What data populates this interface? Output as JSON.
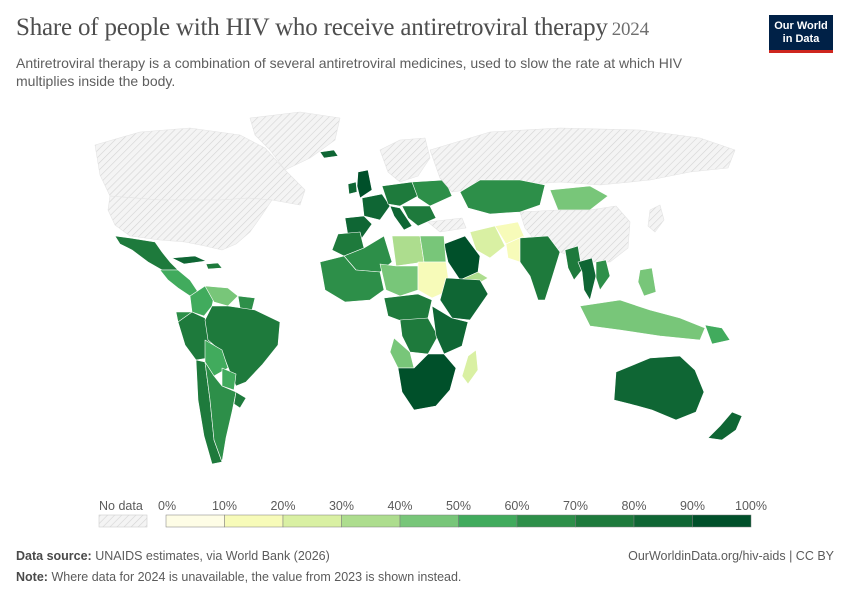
{
  "header": {
    "title": "Share of people with HIV who receive antiretroviral therapy",
    "year": "2024",
    "subtitle": "Antiretroviral therapy is a combination of several antiretroviral medicines, used to slow the rate at which HIV multiplies inside the body."
  },
  "logo": {
    "line1": "Our World",
    "line2": "in Data",
    "bg": "#002147",
    "accent": "#ce261e"
  },
  "legend": {
    "no_data_label": "No data",
    "ticks": [
      "0%",
      "10%",
      "20%",
      "30%",
      "40%",
      "50%",
      "60%",
      "70%",
      "80%",
      "90%",
      "100%"
    ],
    "colors": [
      "#fefde6",
      "#f7fbb9",
      "#d9f0a3",
      "#addd8e",
      "#78c679",
      "#41ab5d",
      "#2d8f49",
      "#1e7a3c",
      "#0f6634",
      "#00502a"
    ]
  },
  "map_regions": [
    {
      "name": "greenland",
      "value": null
    },
    {
      "name": "canada",
      "value": null
    },
    {
      "name": "usa",
      "value": null
    },
    {
      "name": "mexico",
      "value": 70
    },
    {
      "name": "guatemala",
      "value": 50
    },
    {
      "name": "cuba",
      "value": 80
    },
    {
      "name": "haiti",
      "value": 75
    },
    {
      "name": "colombia",
      "value": 55
    },
    {
      "name": "venezuela",
      "value": 45
    },
    {
      "name": "guyana",
      "value": 60
    },
    {
      "name": "ecuador",
      "value": 60
    },
    {
      "name": "peru",
      "value": 72
    },
    {
      "name": "brazil",
      "value": 70
    },
    {
      "name": "bolivia",
      "value": 58
    },
    {
      "name": "paraguay",
      "value": 52
    },
    {
      "name": "chile",
      "value": 74
    },
    {
      "name": "argentina",
      "value": 65
    },
    {
      "name": "uruguay",
      "value": 70
    },
    {
      "name": "iceland",
      "value": 82
    },
    {
      "name": "ireland",
      "value": 88
    },
    {
      "name": "uk",
      "value": 92
    },
    {
      "name": "france",
      "value": 85
    },
    {
      "name": "iberia",
      "value": 82
    },
    {
      "name": "central-europe",
      "value": 75
    },
    {
      "name": "italy",
      "value": 86
    },
    {
      "name": "scandinavia",
      "value": null
    },
    {
      "name": "eastern-europe",
      "value": 60
    },
    {
      "name": "balkans",
      "value": 70
    },
    {
      "name": "russia",
      "value": null
    },
    {
      "name": "kazakhstan",
      "value": 68
    },
    {
      "name": "mongolia",
      "value": 42
    },
    {
      "name": "china",
      "value": null
    },
    {
      "name": "japan",
      "value": null
    },
    {
      "name": "turkey",
      "value": null
    },
    {
      "name": "iran",
      "value": 22
    },
    {
      "name": "afghanistan",
      "value": 12
    },
    {
      "name": "pakistan",
      "value": 18
    },
    {
      "name": "saudi-arabia",
      "value": 95
    },
    {
      "name": "yemen",
      "value": 32
    },
    {
      "name": "india",
      "value": 78
    },
    {
      "name": "myanmar",
      "value": 72
    },
    {
      "name": "thailand",
      "value": 80
    },
    {
      "name": "vietnam",
      "value": 68
    },
    {
      "name": "philippines",
      "value": 40
    },
    {
      "name": "indonesia",
      "value": 45
    },
    {
      "name": "png",
      "value": 55
    },
    {
      "name": "morocco",
      "value": 72
    },
    {
      "name": "algeria",
      "value": 62
    },
    {
      "name": "libya",
      "value": 38
    },
    {
      "name": "egypt",
      "value": 42
    },
    {
      "name": "west-africa",
      "value": 68
    },
    {
      "name": "niger-chad",
      "value": 46
    },
    {
      "name": "sudan",
      "value": 12
    },
    {
      "name": "ethiopia-horn",
      "value": 80
    },
    {
      "name": "central-africa",
      "value": 70
    },
    {
      "name": "drc",
      "value": 75
    },
    {
      "name": "east-africa",
      "value": 88
    },
    {
      "name": "angola",
      "value": 45
    },
    {
      "name": "southern-africa",
      "value": 90
    },
    {
      "name": "madagascar",
      "value": 22
    },
    {
      "name": "australia",
      "value": 85
    },
    {
      "name": "new-zealand",
      "value": 86
    }
  ],
  "footer": {
    "source_label": "Data source:",
    "source_text": "UNAIDS estimates, via World Bank (2026)",
    "url": "OurWorldinData.org/hiv-aids | CC BY",
    "note_label": "Note:",
    "note_text": "Where data for 2024 is unavailable, the value from 2023 is shown instead."
  }
}
